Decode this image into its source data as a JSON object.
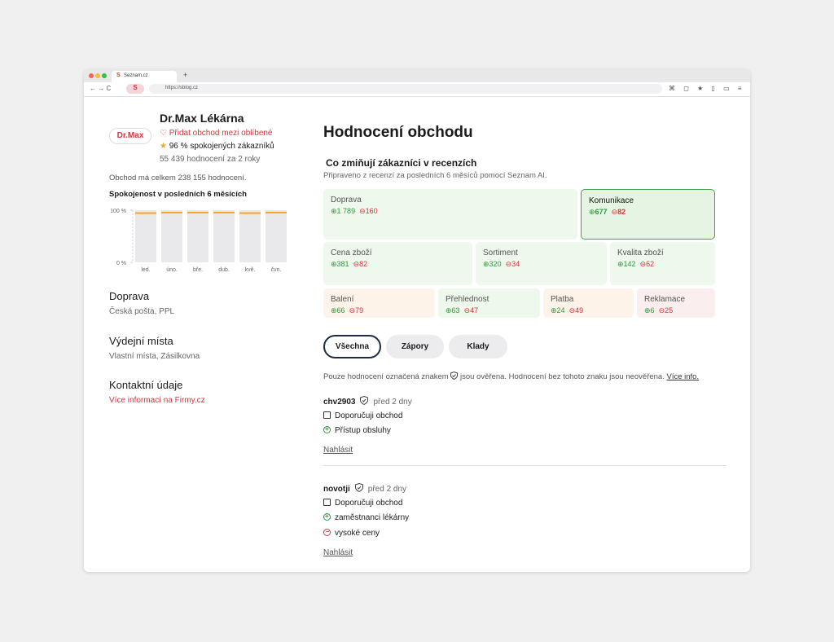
{
  "browser": {
    "tab_title": "Seznam.cz",
    "url": "https://sblog.cz"
  },
  "shop": {
    "logo": "Dr.Max",
    "name": "Dr.Max Lékárna",
    "favorite": "Přidat obchod mezi oblíbené",
    "satisfaction": "96 % spokojených zákazníků",
    "reviews_count": "55 439 hodnocení za 2 roky",
    "total": "Obchod má celkem 238 155 hodnocení."
  },
  "satisfaction_chart": {
    "type": "bar",
    "title": "Spokojenost v posledních 6 měsících",
    "categories": [
      "led.",
      "úno.",
      "bře.",
      "dub.",
      "kvě.",
      "čvn."
    ],
    "values": [
      96,
      97,
      97,
      97,
      96,
      97
    ],
    "ylim": [
      0,
      100
    ],
    "yticks": [
      {
        "value": 100,
        "label": "100 %"
      },
      {
        "value": 0,
        "label": "0 %"
      }
    ],
    "color": "#e9e9ec",
    "cap_color": "#f5a623"
  },
  "info_sections": [
    {
      "title": "Doprava",
      "text": "Česká pošta, PPL"
    },
    {
      "title": "Výdejní místa",
      "text": "Vlastní místa, Zásilkovna"
    },
    {
      "title": "Kontaktní údaje",
      "text": "Více informací na Firmy.cz"
    }
  ],
  "main": {
    "heading": "Hodnocení obchodu",
    "subheading": "Co zmiňují zákazníci v recenzích",
    "note": "Připraveno z recenzí za posledních 6 měsíců pomocí Seznam AI"
  },
  "topics": [
    {
      "name": "Doprava",
      "positive": "1 789",
      "negative": "160"
    },
    {
      "name": "Komunikace",
      "positive": "677",
      "negative": "82"
    },
    {
      "name": "Cena zboží",
      "positive": "381",
      "negative": "82"
    },
    {
      "name": "Sortiment",
      "positive": "320",
      "negative": "34"
    },
    {
      "name": "Kvalita zboží",
      "positive": "142",
      "negative": "62"
    },
    {
      "name": "Balení",
      "positive": "66",
      "negative": "79"
    },
    {
      "name": "Přehlednost",
      "positive": "63",
      "negative": "47"
    },
    {
      "name": "Platba",
      "positive": "24",
      "negative": "49"
    },
    {
      "name": "Reklamace",
      "positive": "6",
      "negative": "25"
    }
  ],
  "filters": [
    "Všechna",
    "Zápory",
    "Klady"
  ],
  "verify_note": {
    "before": "Pouze hodnocení označená znakem",
    "after": "jsou ověřena. Hodnocení bez tohoto znaku jsou neověřena.",
    "link": "Více info."
  },
  "reviews": [
    {
      "user": "chv2903",
      "time": "před 2 dny",
      "recommend": "Doporučuji obchod",
      "pros": [
        "Přístup obsluhy"
      ],
      "cons": [],
      "report": "Nahlásit"
    },
    {
      "user": "novotji",
      "time": "před 2 dny",
      "recommend": "Doporučuji obchod",
      "pros": [
        "zaměstnanci lékárny"
      ],
      "cons": [
        "vysoké ceny"
      ],
      "report": "Nahlásit"
    }
  ]
}
